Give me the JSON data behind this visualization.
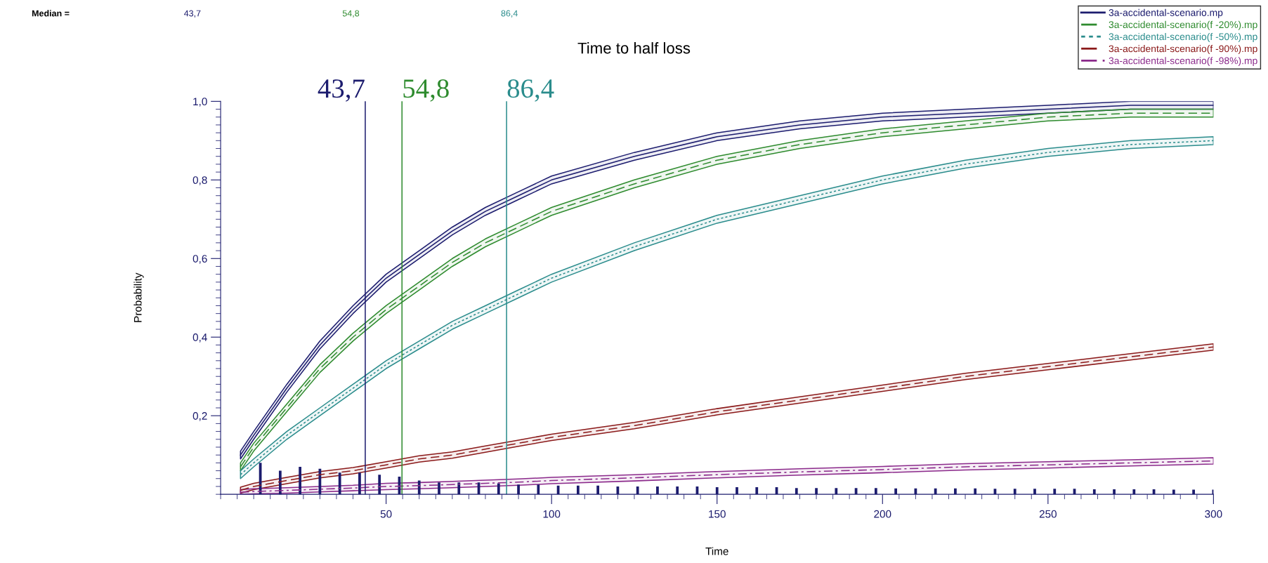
{
  "chart_data": {
    "type": "line",
    "title": "Time to half loss",
    "xlabel": "Time",
    "ylabel": "Probability",
    "annotations": [
      "Median ="
    ],
    "x": [
      6,
      10,
      20,
      30,
      40,
      50,
      60,
      70,
      80,
      90,
      100,
      125,
      150,
      175,
      200,
      225,
      250,
      275,
      300
    ],
    "xlim": [
      0,
      300
    ],
    "xticks": [
      50,
      100,
      150,
      200,
      250,
      300
    ],
    "ylim": [
      0,
      1.0
    ],
    "yticks": [
      {
        "value": 0.2,
        "label": "0,2"
      },
      {
        "value": 0.4,
        "label": "0,4"
      },
      {
        "value": 0.6,
        "label": "0,6"
      },
      {
        "value": 0.8,
        "label": "0,8"
      },
      {
        "value": 1.0,
        "label": "1,0"
      }
    ],
    "grid": false,
    "legend": "top right",
    "marker": "none",
    "series": [
      {
        "name": "3a-accidental-scenario.mp",
        "color": "#1c1c6e",
        "line_style": "solid",
        "values": [
          0.1,
          0.15,
          0.27,
          0.38,
          0.47,
          0.55,
          0.61,
          0.67,
          0.72,
          0.76,
          0.8,
          0.86,
          0.91,
          0.94,
          0.96,
          0.97,
          0.98,
          0.99,
          0.99
        ],
        "lower": [
          0.09,
          0.14,
          0.26,
          0.37,
          0.46,
          0.54,
          0.6,
          0.66,
          0.71,
          0.75,
          0.79,
          0.85,
          0.9,
          0.93,
          0.95,
          0.96,
          0.97,
          0.98,
          0.98
        ],
        "upper": [
          0.11,
          0.16,
          0.28,
          0.39,
          0.48,
          0.56,
          0.62,
          0.68,
          0.73,
          0.77,
          0.81,
          0.87,
          0.92,
          0.95,
          0.97,
          0.98,
          0.99,
          1.0,
          1.0
        ]
      },
      {
        "name": "3a-accidental-scenario(f -20%).mp",
        "color": "#2e8b2e",
        "line_style": "dashed",
        "values": [
          0.07,
          0.12,
          0.22,
          0.32,
          0.4,
          0.47,
          0.53,
          0.59,
          0.64,
          0.68,
          0.72,
          0.79,
          0.85,
          0.89,
          0.92,
          0.94,
          0.96,
          0.97,
          0.97
        ],
        "lower": [
          0.06,
          0.11,
          0.21,
          0.31,
          0.39,
          0.46,
          0.52,
          0.58,
          0.63,
          0.67,
          0.71,
          0.78,
          0.84,
          0.88,
          0.91,
          0.93,
          0.95,
          0.96,
          0.96
        ],
        "upper": [
          0.08,
          0.13,
          0.23,
          0.33,
          0.41,
          0.48,
          0.54,
          0.6,
          0.65,
          0.69,
          0.73,
          0.8,
          0.86,
          0.9,
          0.93,
          0.95,
          0.97,
          0.98,
          0.98
        ]
      },
      {
        "name": "3a-accidental-scenario(f -50%).mp",
        "color": "#2a8c8c",
        "line_style": "dotted",
        "values": [
          0.05,
          0.08,
          0.15,
          0.21,
          0.27,
          0.33,
          0.38,
          0.43,
          0.47,
          0.51,
          0.55,
          0.63,
          0.7,
          0.75,
          0.8,
          0.84,
          0.87,
          0.89,
          0.9
        ],
        "lower": [
          0.04,
          0.07,
          0.14,
          0.2,
          0.26,
          0.32,
          0.37,
          0.42,
          0.46,
          0.5,
          0.54,
          0.62,
          0.69,
          0.74,
          0.79,
          0.83,
          0.86,
          0.88,
          0.89
        ],
        "upper": [
          0.06,
          0.09,
          0.16,
          0.22,
          0.28,
          0.34,
          0.39,
          0.44,
          0.48,
          0.52,
          0.56,
          0.64,
          0.71,
          0.76,
          0.81,
          0.85,
          0.88,
          0.9,
          0.91
        ]
      },
      {
        "name": "3a-accidental-scenario(f -90%).mp",
        "color": "#8b1a1a",
        "line_style": "dashed",
        "values": [
          0.01,
          0.02,
          0.035,
          0.05,
          0.06,
          0.075,
          0.09,
          0.1,
          0.115,
          0.13,
          0.145,
          0.175,
          0.21,
          0.24,
          0.27,
          0.3,
          0.325,
          0.35,
          0.375
        ],
        "lower": [
          0.003,
          0.012,
          0.027,
          0.042,
          0.052,
          0.067,
          0.082,
          0.092,
          0.107,
          0.122,
          0.137,
          0.167,
          0.202,
          0.232,
          0.262,
          0.292,
          0.317,
          0.342,
          0.367
        ],
        "upper": [
          0.018,
          0.028,
          0.043,
          0.058,
          0.068,
          0.083,
          0.098,
          0.108,
          0.123,
          0.138,
          0.153,
          0.183,
          0.218,
          0.248,
          0.278,
          0.308,
          0.333,
          0.358,
          0.383
        ]
      },
      {
        "name": "3a-accidental-scenario(f -98%).mp",
        "color": "#8b2a8b",
        "line_style": "dashdot",
        "values": [
          0.005,
          0.007,
          0.01,
          0.013,
          0.016,
          0.02,
          0.022,
          0.025,
          0.028,
          0.031,
          0.035,
          0.042,
          0.05,
          0.057,
          0.063,
          0.07,
          0.075,
          0.08,
          0.085
        ],
        "lower": [
          0.0,
          0.001,
          0.003,
          0.006,
          0.009,
          0.012,
          0.014,
          0.017,
          0.02,
          0.023,
          0.027,
          0.034,
          0.042,
          0.049,
          0.055,
          0.062,
          0.067,
          0.072,
          0.077
        ],
        "upper": [
          0.012,
          0.014,
          0.017,
          0.02,
          0.023,
          0.028,
          0.03,
          0.033,
          0.036,
          0.039,
          0.043,
          0.05,
          0.058,
          0.065,
          0.071,
          0.078,
          0.083,
          0.088,
          0.093
        ]
      },
      {
        "type": "bar",
        "color": "#1c1c6e",
        "x": [
          12,
          18,
          24,
          30,
          36,
          42,
          48,
          54,
          60,
          66,
          72,
          78,
          84,
          90,
          96,
          102,
          108,
          114,
          120,
          126,
          132,
          138,
          144,
          150,
          156,
          162,
          168,
          174,
          180,
          186,
          192,
          198,
          204,
          210,
          216,
          222,
          228,
          234,
          240,
          246,
          252,
          258,
          264,
          270,
          276,
          282,
          288,
          294,
          300
        ],
        "values": [
          0.08,
          0.06,
          0.07,
          0.065,
          0.055,
          0.055,
          0.05,
          0.045,
          0.035,
          0.03,
          0.03,
          0.03,
          0.028,
          0.025,
          0.025,
          0.022,
          0.022,
          0.022,
          0.02,
          0.02,
          0.02,
          0.02,
          0.02,
          0.018,
          0.018,
          0.018,
          0.018,
          0.016,
          0.016,
          0.016,
          0.016,
          0.016,
          0.015,
          0.015,
          0.015,
          0.015,
          0.015,
          0.014,
          0.014,
          0.014,
          0.014,
          0.014,
          0.013,
          0.013,
          0.013,
          0.013,
          0.012,
          0.012,
          0.012
        ]
      }
    ],
    "ref_lines": [
      {
        "axis": "x",
        "value": 43.7,
        "label": "43,7",
        "color": "#1c1c6e"
      },
      {
        "axis": "x",
        "value": 54.8,
        "label": "54,8",
        "color": "#2e8b2e"
      },
      {
        "axis": "x",
        "value": 86.4,
        "label": "86,4",
        "color": "#2a8c8c"
      }
    ]
  }
}
